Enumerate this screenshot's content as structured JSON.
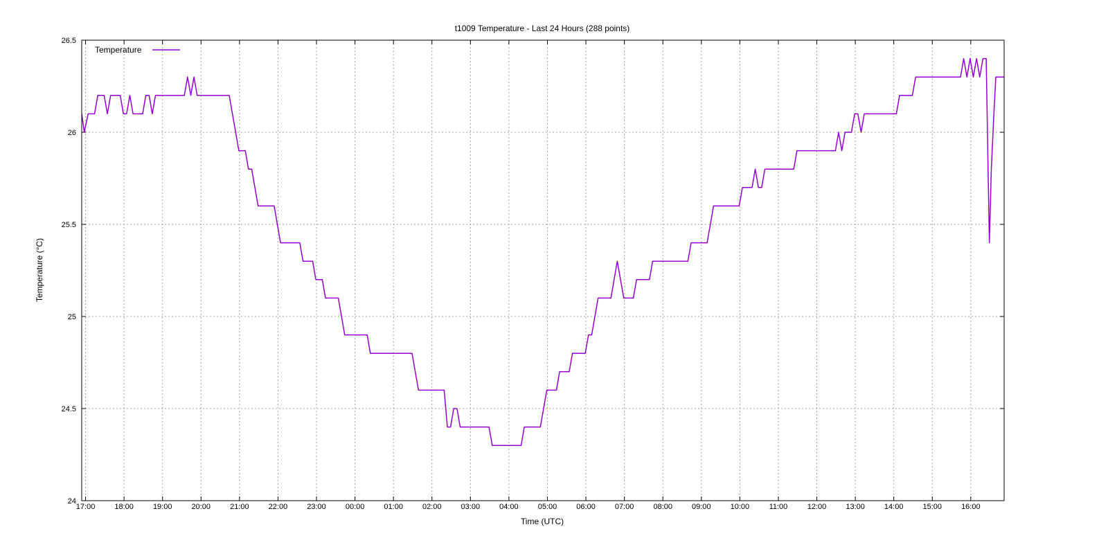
{
  "chart_data": {
    "type": "line",
    "title": "t1009 Temperature - Last 24 Hours (288 points)",
    "xlabel": "Time (UTC)",
    "ylabel": "Temperature (°C)",
    "legend": {
      "position": "top-left",
      "entries": [
        "Temperature"
      ]
    },
    "grid": true,
    "colors": {
      "series": "#9400d3",
      "grid": "#a0a0a0",
      "frame": "#000000"
    },
    "xlim": [
      "16:54",
      "16:52"
    ],
    "ylim": [
      24,
      26.5
    ],
    "x_tick_labels": [
      "17:00",
      "18:00",
      "19:00",
      "20:00",
      "21:00",
      "22:00",
      "23:00",
      "00:00",
      "01:00",
      "02:00",
      "03:00",
      "04:00",
      "05:00",
      "06:00",
      "07:00",
      "08:00",
      "09:00",
      "10:00",
      "11:00",
      "12:00",
      "13:00",
      "14:00",
      "15:00",
      "16:00"
    ],
    "y_tick_labels": [
      "24",
      "24.5",
      "25",
      "25.5",
      "26",
      "26.5"
    ],
    "series": [
      {
        "name": "Temperature",
        "points": [
          [
            "16:54",
            26.1
          ],
          [
            "16:58",
            26.0
          ],
          [
            "17:04",
            26.1
          ],
          [
            "17:14",
            26.1
          ],
          [
            "17:19",
            26.2
          ],
          [
            "17:29",
            26.2
          ],
          [
            "17:34",
            26.1
          ],
          [
            "17:39",
            26.2
          ],
          [
            "17:54",
            26.2
          ],
          [
            "17:59",
            26.1
          ],
          [
            "18:04",
            26.1
          ],
          [
            "18:09",
            26.2
          ],
          [
            "18:14",
            26.1
          ],
          [
            "18:29",
            26.1
          ],
          [
            "18:34",
            26.2
          ],
          [
            "18:39",
            26.2
          ],
          [
            "18:44",
            26.1
          ],
          [
            "18:49",
            26.2
          ],
          [
            "19:09",
            26.2
          ],
          [
            "19:34",
            26.2
          ],
          [
            "19:39",
            26.3
          ],
          [
            "19:44",
            26.2
          ],
          [
            "19:49",
            26.3
          ],
          [
            "19:54",
            26.2
          ],
          [
            "20:44",
            26.2
          ],
          [
            "20:54",
            26.0
          ],
          [
            "20:59",
            25.9
          ],
          [
            "21:09",
            25.9
          ],
          [
            "21:14",
            25.8
          ],
          [
            "21:19",
            25.8
          ],
          [
            "21:29",
            25.6
          ],
          [
            "21:54",
            25.6
          ],
          [
            "22:04",
            25.4
          ],
          [
            "22:34",
            25.4
          ],
          [
            "22:39",
            25.3
          ],
          [
            "22:54",
            25.3
          ],
          [
            "22:59",
            25.2
          ],
          [
            "23:09",
            25.2
          ],
          [
            "23:14",
            25.1
          ],
          [
            "23:34",
            25.1
          ],
          [
            "23:44",
            24.9
          ],
          [
            "00:19",
            24.9
          ],
          [
            "00:24",
            24.8
          ],
          [
            "01:29",
            24.8
          ],
          [
            "01:39",
            24.6
          ],
          [
            "02:19",
            24.6
          ],
          [
            "02:24",
            24.4
          ],
          [
            "02:29",
            24.4
          ],
          [
            "02:34",
            24.5
          ],
          [
            "02:39",
            24.5
          ],
          [
            "02:44",
            24.4
          ],
          [
            "03:29",
            24.4
          ],
          [
            "03:34",
            24.3
          ],
          [
            "04:19",
            24.3
          ],
          [
            "04:24",
            24.4
          ],
          [
            "04:49",
            24.4
          ],
          [
            "04:59",
            24.6
          ],
          [
            "05:14",
            24.6
          ],
          [
            "05:19",
            24.7
          ],
          [
            "05:34",
            24.7
          ],
          [
            "05:39",
            24.8
          ],
          [
            "05:59",
            24.8
          ],
          [
            "06:04",
            24.9
          ],
          [
            "06:09",
            24.9
          ],
          [
            "06:19",
            25.1
          ],
          [
            "06:39",
            25.1
          ],
          [
            "06:49",
            25.3
          ],
          [
            "06:59",
            25.1
          ],
          [
            "07:14",
            25.1
          ],
          [
            "07:19",
            25.2
          ],
          [
            "07:39",
            25.2
          ],
          [
            "07:44",
            25.3
          ],
          [
            "08:39",
            25.3
          ],
          [
            "08:44",
            25.4
          ],
          [
            "09:09",
            25.4
          ],
          [
            "09:19",
            25.6
          ],
          [
            "09:59",
            25.6
          ],
          [
            "10:04",
            25.7
          ],
          [
            "10:19",
            25.7
          ],
          [
            "10:24",
            25.8
          ],
          [
            "10:29",
            25.7
          ],
          [
            "10:34",
            25.7
          ],
          [
            "10:39",
            25.8
          ],
          [
            "11:24",
            25.8
          ],
          [
            "11:29",
            25.9
          ],
          [
            "12:29",
            25.9
          ],
          [
            "12:34",
            26.0
          ],
          [
            "12:39",
            25.9
          ],
          [
            "12:44",
            26.0
          ],
          [
            "12:54",
            26.0
          ],
          [
            "12:59",
            26.1
          ],
          [
            "13:04",
            26.1
          ],
          [
            "13:09",
            26.0
          ],
          [
            "13:14",
            26.1
          ],
          [
            "14:04",
            26.1
          ],
          [
            "14:09",
            26.2
          ],
          [
            "14:29",
            26.2
          ],
          [
            "14:34",
            26.3
          ],
          [
            "15:44",
            26.3
          ],
          [
            "15:49",
            26.4
          ],
          [
            "15:54",
            26.3
          ],
          [
            "15:59",
            26.4
          ],
          [
            "16:04",
            26.3
          ],
          [
            "16:09",
            26.4
          ],
          [
            "16:14",
            26.3
          ],
          [
            "16:19",
            26.4
          ],
          [
            "16:24",
            26.4
          ],
          [
            "16:26",
            26.0
          ],
          [
            "16:29",
            25.4
          ],
          [
            "16:32",
            25.8
          ],
          [
            "16:36",
            26.1
          ],
          [
            "16:39",
            26.3
          ],
          [
            "16:52",
            26.3
          ]
        ]
      }
    ]
  }
}
